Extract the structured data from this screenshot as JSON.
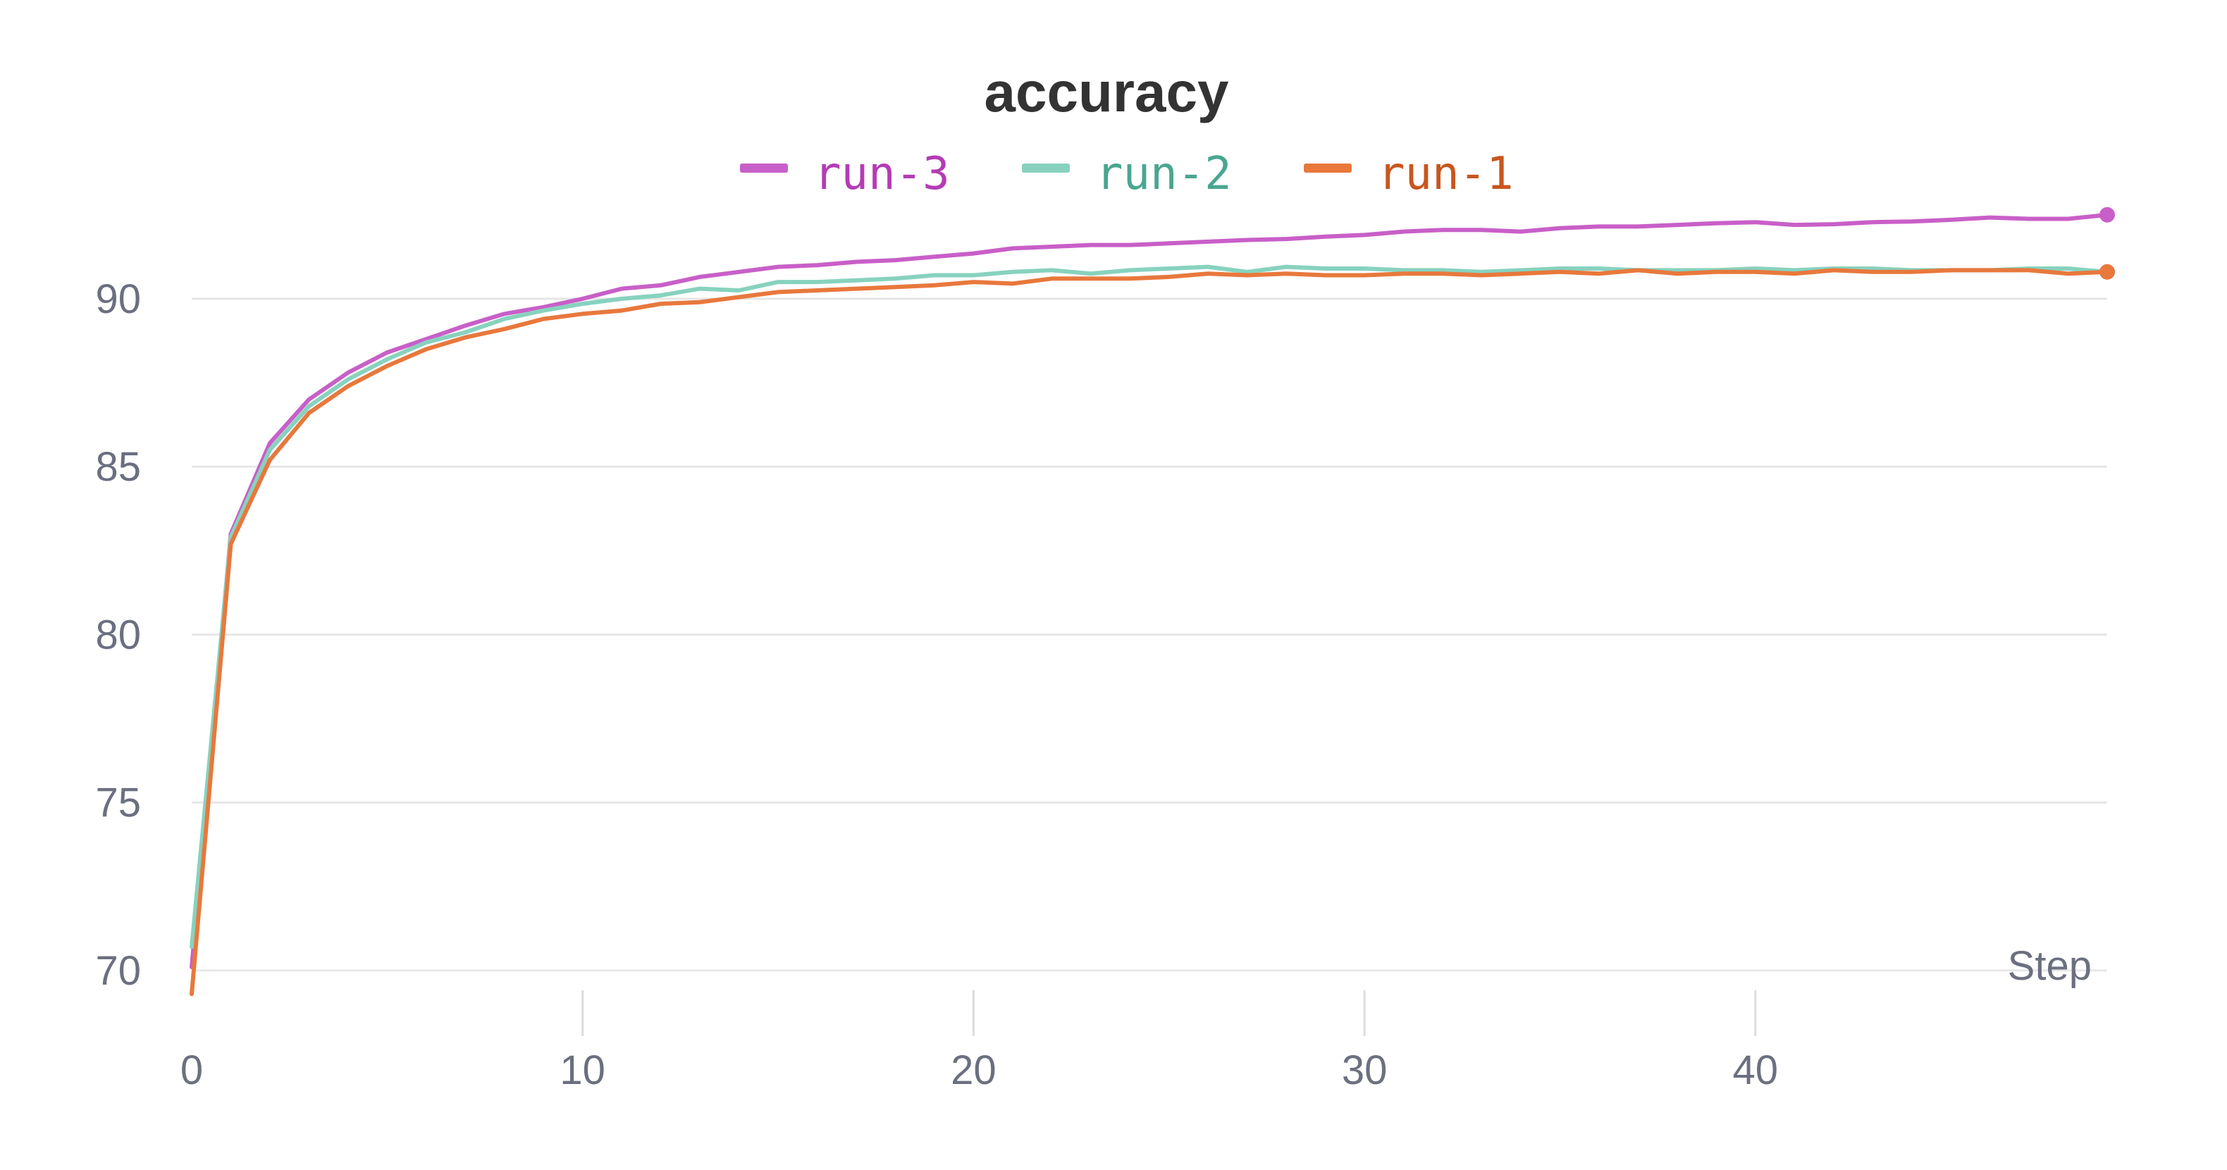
{
  "chart_data": {
    "type": "line",
    "title": "accuracy",
    "xlabel": "Step",
    "ylabel": "",
    "xlim": [
      0,
      49
    ],
    "ylim": [
      69.2,
      92.6
    ],
    "x_ticks": [
      0,
      10,
      20,
      30,
      40
    ],
    "y_ticks": [
      70,
      75,
      80,
      85,
      90
    ],
    "grid": true,
    "legend_position": "top-center",
    "series": [
      {
        "name": "run-3",
        "color": "#c85fc8",
        "text_color": "#b43cb4",
        "x": [
          0,
          1,
          2,
          3,
          4,
          5,
          6,
          7,
          8,
          9,
          10,
          11,
          12,
          13,
          14,
          15,
          16,
          17,
          18,
          19,
          20,
          21,
          22,
          23,
          24,
          25,
          26,
          27,
          28,
          29,
          30,
          31,
          32,
          33,
          34,
          35,
          36,
          37,
          38,
          39,
          40,
          41,
          42,
          43,
          44,
          45,
          46,
          47,
          48,
          49
        ],
        "values": [
          70.1,
          83.0,
          85.7,
          87.0,
          87.8,
          88.4,
          88.8,
          89.2,
          89.55,
          89.75,
          90.0,
          90.3,
          90.4,
          90.65,
          90.8,
          90.95,
          91.0,
          91.1,
          91.15,
          91.25,
          91.35,
          91.5,
          91.55,
          91.6,
          91.6,
          91.65,
          91.7,
          91.75,
          91.78,
          91.85,
          91.9,
          92.0,
          92.05,
          92.05,
          92.0,
          92.1,
          92.15,
          92.15,
          92.2,
          92.25,
          92.28,
          92.2,
          92.22,
          92.28,
          92.3,
          92.35,
          92.42,
          92.38,
          92.38,
          92.5
        ]
      },
      {
        "name": "run-2",
        "color": "#87d2be",
        "text_color": "#4aa690",
        "x": [
          0,
          1,
          2,
          3,
          4,
          5,
          6,
          7,
          8,
          9,
          10,
          11,
          12,
          13,
          14,
          15,
          16,
          17,
          18,
          19,
          20,
          21,
          22,
          23,
          24,
          25,
          26,
          27,
          28,
          29,
          30,
          31,
          32,
          33,
          34,
          35,
          36,
          37,
          38,
          39,
          40,
          41,
          42,
          43,
          44,
          45,
          46,
          47,
          48,
          49
        ],
        "values": [
          70.7,
          82.9,
          85.5,
          86.8,
          87.6,
          88.2,
          88.7,
          89.0,
          89.4,
          89.65,
          89.85,
          90.0,
          90.1,
          90.3,
          90.25,
          90.5,
          90.5,
          90.55,
          90.6,
          90.7,
          90.7,
          90.8,
          90.85,
          90.75,
          90.85,
          90.9,
          90.95,
          90.8,
          90.95,
          90.9,
          90.9,
          90.85,
          90.85,
          90.8,
          90.85,
          90.9,
          90.9,
          90.85,
          90.85,
          90.85,
          90.9,
          90.85,
          90.9,
          90.9,
          90.85,
          90.85,
          90.85,
          90.9,
          90.9,
          90.8
        ]
      },
      {
        "name": "run-1",
        "color": "#e8783c",
        "text_color": "#c8561e",
        "x": [
          0,
          1,
          2,
          3,
          4,
          5,
          6,
          7,
          8,
          9,
          10,
          11,
          12,
          13,
          14,
          15,
          16,
          17,
          18,
          19,
          20,
          21,
          22,
          23,
          24,
          25,
          26,
          27,
          28,
          29,
          30,
          31,
          32,
          33,
          34,
          35,
          36,
          37,
          38,
          39,
          40,
          41,
          42,
          43,
          44,
          45,
          46,
          47,
          48,
          49
        ],
        "values": [
          69.3,
          82.7,
          85.2,
          86.6,
          87.4,
          88.0,
          88.5,
          88.85,
          89.1,
          89.4,
          89.55,
          89.65,
          89.85,
          89.9,
          90.05,
          90.2,
          90.25,
          90.3,
          90.35,
          90.4,
          90.5,
          90.45,
          90.6,
          90.6,
          90.6,
          90.65,
          90.75,
          90.7,
          90.75,
          90.7,
          90.7,
          90.75,
          90.75,
          90.7,
          90.75,
          90.8,
          90.75,
          90.85,
          90.75,
          90.8,
          90.8,
          90.75,
          90.85,
          90.8,
          90.8,
          90.85,
          90.85,
          90.85,
          90.75,
          90.8
        ]
      }
    ]
  }
}
